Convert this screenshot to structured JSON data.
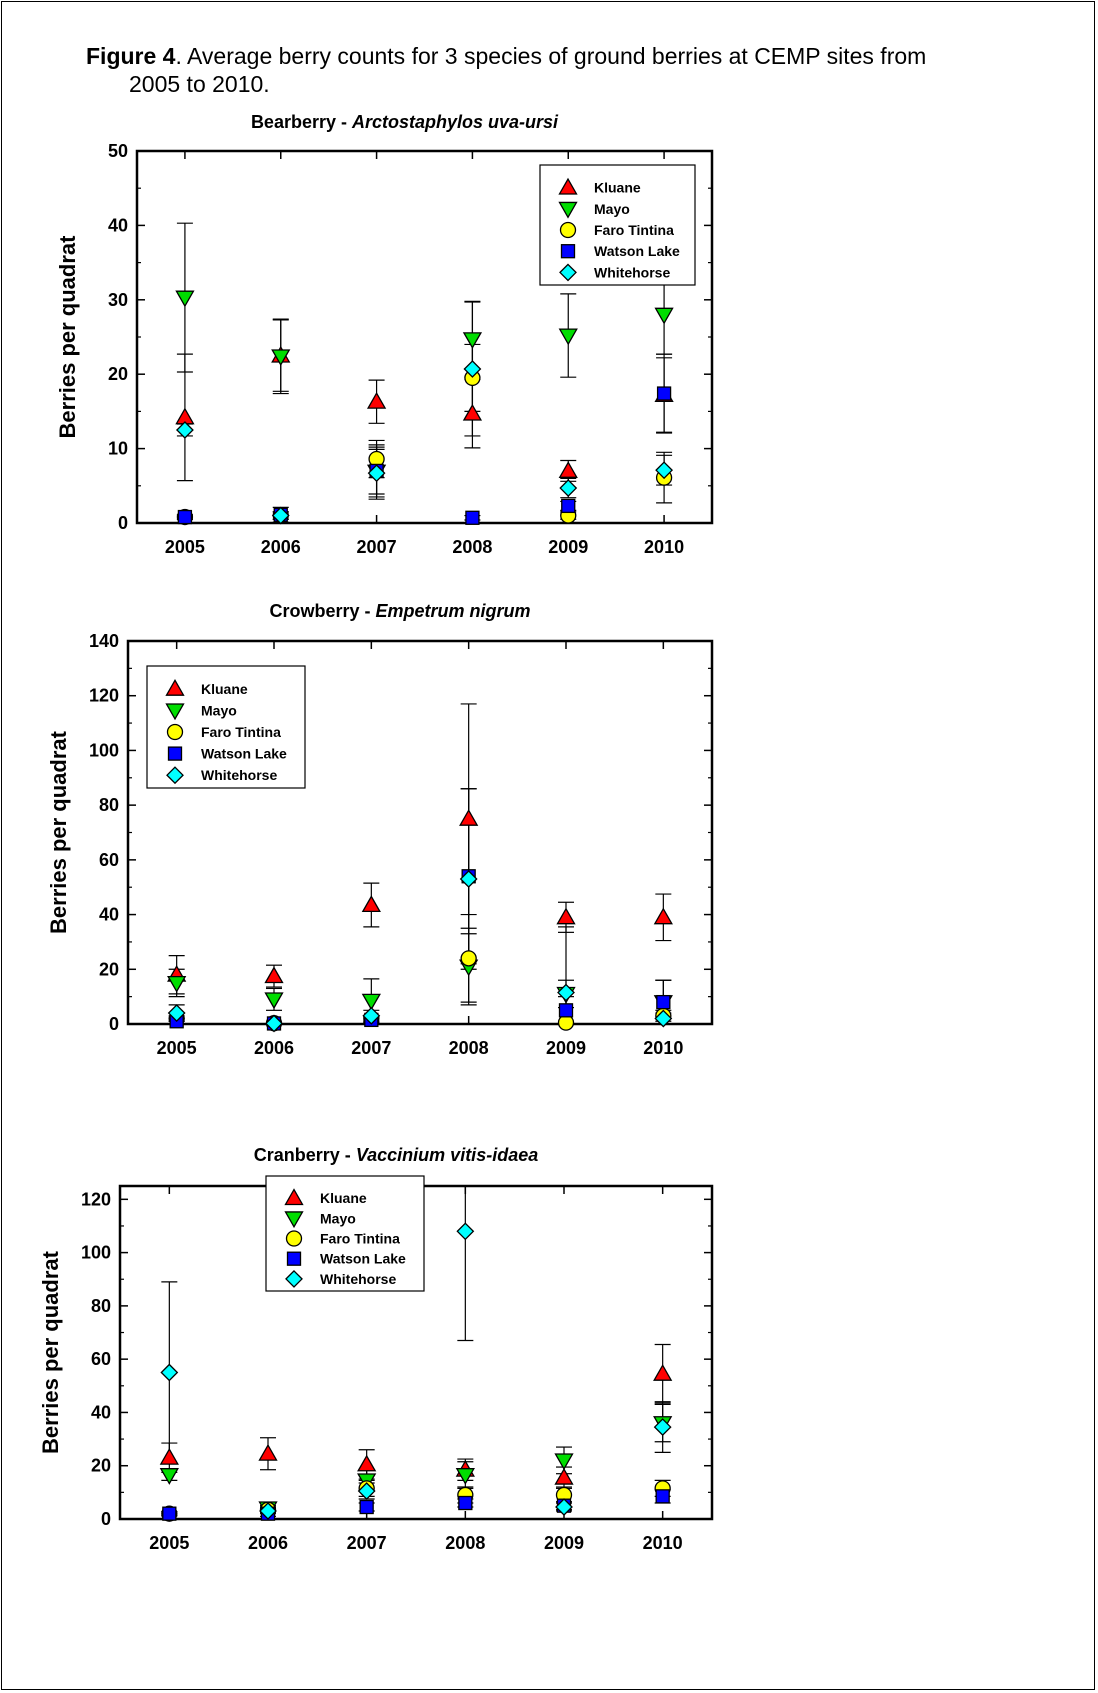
{
  "caption": {
    "label": "Figure 4",
    "text_line1": ".  Average berry counts for 3 species of ground berries at CEMP sites from",
    "text_line2": "2005 to 2010."
  },
  "chart_data": [
    {
      "type": "scatter",
      "title_common": "Bearberry - ",
      "title_latin": "Arctostaphylos uva-ursi",
      "xlabel": "",
      "ylabel": "Berries per quadrat",
      "x": [
        "2005",
        "2006",
        "2007",
        "2008",
        "2009",
        "2010"
      ],
      "ylim": [
        0,
        50
      ],
      "yticks": [
        0,
        10,
        20,
        30,
        40,
        50
      ],
      "legend_position": "top-right",
      "series": [
        {
          "name": "Kluane",
          "marker": "triangle-up",
          "color": "#ff0000",
          "values": [
            14.2,
            22.5,
            16.3,
            14.7,
            7.0,
            17.2
          ],
          "err": [
            8.5,
            4.8,
            2.9,
            4.6,
            1.4,
            5.0
          ]
        },
        {
          "name": "Mayo",
          "marker": "triangle-down",
          "color": "#00dd00",
          "values": [
            30.3,
            22.4,
            6.9,
            24.7,
            25.2,
            28.0
          ],
          "err": [
            10.0,
            5.0,
            3.0,
            5.1,
            5.6,
            5.3
          ]
        },
        {
          "name": "Faro Tintina",
          "marker": "circle",
          "color": "#ffff00",
          "values": [
            0.8,
            1.0,
            8.6,
            19.5,
            1.0,
            6.1
          ],
          "err": [
            0.3,
            0.5,
            2.5,
            4.5,
            0.5,
            3.4
          ]
        },
        {
          "name": "Watson Lake",
          "marker": "square",
          "color": "#0000ff",
          "values": [
            0.8,
            1.1,
            7.0,
            0.7,
            2.3,
            17.4
          ],
          "err": [
            0.3,
            1.0,
            3.5,
            0.3,
            0.6,
            5.3
          ]
        },
        {
          "name": "Whitehorse",
          "marker": "diamond",
          "color": "#00ffff",
          "values": [
            12.5,
            1.0,
            6.7,
            20.7,
            4.7,
            7.1
          ],
          "err": [
            0.8,
            0.5,
            3.5,
            9.0,
            1.3,
            2.0
          ]
        }
      ]
    },
    {
      "type": "scatter",
      "title_common": "Crowberry - ",
      "title_latin": "Empetrum nigrum",
      "xlabel": "",
      "ylabel": "Berries per quadrat",
      "x": [
        "2005",
        "2006",
        "2007",
        "2008",
        "2009",
        "2010"
      ],
      "ylim": [
        0,
        140
      ],
      "yticks": [
        0,
        20,
        40,
        60,
        80,
        100,
        120,
        140
      ],
      "legend_position": "top-left",
      "series": [
        {
          "name": "Kluane",
          "marker": "triangle-up",
          "color": "#ff0000",
          "values": [
            18.0,
            17.5,
            43.5,
            75.0,
            39.0,
            39.0
          ],
          "err": [
            7.0,
            4.0,
            8.0,
            42.0,
            5.5,
            8.5
          ]
        },
        {
          "name": "Mayo",
          "marker": "triangle-down",
          "color": "#00dd00",
          "values": [
            15.0,
            9.0,
            8.5,
            21.0,
            11.0,
            8.0
          ],
          "err": [
            5.0,
            4.0,
            8.0,
            14.0,
            5.0,
            8.0
          ]
        },
        {
          "name": "Faro Tintina",
          "marker": "circle",
          "color": "#ffff00",
          "values": [
            2.0,
            0.3,
            2.0,
            24.0,
            0.5,
            3.0
          ],
          "err": [
            1.0,
            0.3,
            1.0,
            16.0,
            0.5,
            2.0
          ]
        },
        {
          "name": "Watson Lake",
          "marker": "square",
          "color": "#0000ff",
          "values": [
            1.0,
            0.2,
            1.5,
            54.0,
            5.0,
            8.0
          ],
          "err": [
            1.0,
            0.2,
            1.0,
            32.0,
            5.0,
            8.0
          ]
        },
        {
          "name": "Whitehorse",
          "marker": "diamond",
          "color": "#00ffff",
          "values": [
            4.0,
            0.2,
            3.0,
            53.0,
            11.5,
            2.0
          ],
          "err": [
            3.0,
            0.2,
            2.0,
            33.0,
            24.0,
            2.0
          ]
        }
      ]
    },
    {
      "type": "scatter",
      "title_common": "Cranberry - ",
      "title_latin": "Vaccinium vitis-idaea",
      "xlabel": "",
      "ylabel": "Berries per quadrat",
      "x": [
        "2005",
        "2006",
        "2007",
        "2008",
        "2009",
        "2010"
      ],
      "ylim": [
        0,
        125
      ],
      "yticks": [
        0,
        20,
        40,
        60,
        80,
        100,
        120
      ],
      "legend_position": "top-left",
      "series": [
        {
          "name": "Kluane",
          "marker": "triangle-up",
          "color": "#ff0000",
          "values": [
            23.0,
            24.5,
            20.5,
            18.5,
            15.5,
            54.5
          ],
          "err": [
            5.5,
            6.0,
            5.5,
            4.0,
            4.0,
            11.0
          ]
        },
        {
          "name": "Mayo",
          "marker": "triangle-down",
          "color": "#00dd00",
          "values": [
            16.5,
            4.0,
            14.5,
            16.5,
            22.0,
            36.0
          ],
          "err": [
            2.0,
            1.0,
            4.0,
            5.0,
            5.0,
            7.0
          ]
        },
        {
          "name": "Faro Tintina",
          "marker": "circle",
          "color": "#ffff00",
          "values": [
            2.0,
            3.5,
            11.5,
            9.0,
            9.0,
            11.5
          ],
          "err": [
            0.8,
            1.0,
            3.0,
            3.0,
            3.0,
            3.0
          ]
        },
        {
          "name": "Watson Lake",
          "marker": "square",
          "color": "#0000ff",
          "values": [
            2.0,
            2.0,
            4.5,
            6.0,
            5.0,
            8.5
          ],
          "err": [
            0.8,
            1.0,
            1.5,
            1.5,
            1.5,
            2.5
          ]
        },
        {
          "name": "Whitehorse",
          "marker": "diamond",
          "color": "#00ffff",
          "values": [
            55.0,
            3.0,
            10.5,
            108.0,
            4.5,
            34.5
          ],
          "err": [
            34.0,
            1.0,
            3.0,
            41.0,
            1.5,
            9.5
          ]
        }
      ]
    }
  ]
}
